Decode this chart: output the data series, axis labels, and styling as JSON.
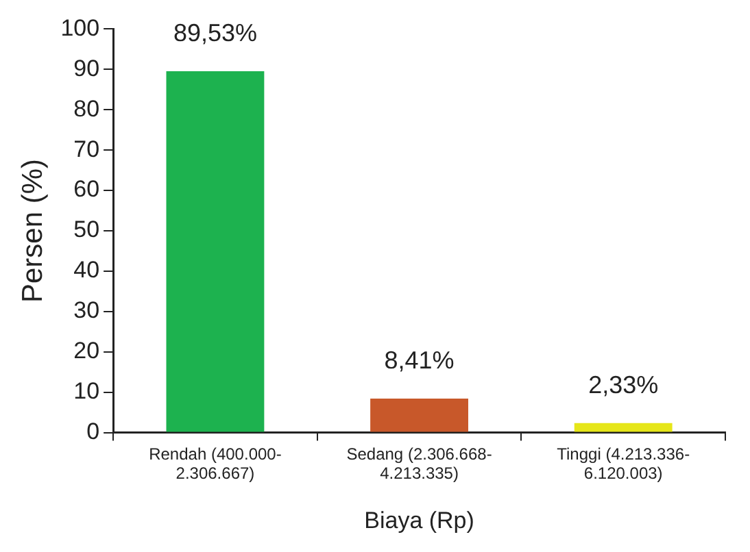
{
  "chart_data": {
    "type": "bar",
    "xlabel": "Biaya (Rp)",
    "ylabel": "Persen (%)",
    "categories": [
      "Rendah (400.000-2.306.667)",
      "Sedang (2.306.668-4.213.335)",
      "Tinggi (4.213.336-6.120.003)"
    ],
    "values": [
      89.53,
      8.41,
      2.33
    ],
    "value_labels": [
      "89,53%",
      "8,41%",
      "2,33%"
    ],
    "colors": [
      "#1db24f",
      "#c8582a",
      "#e6e619"
    ],
    "ylim": [
      0,
      100
    ],
    "yticks": [
      0,
      10,
      20,
      30,
      40,
      50,
      60,
      70,
      80,
      90,
      100
    ]
  }
}
